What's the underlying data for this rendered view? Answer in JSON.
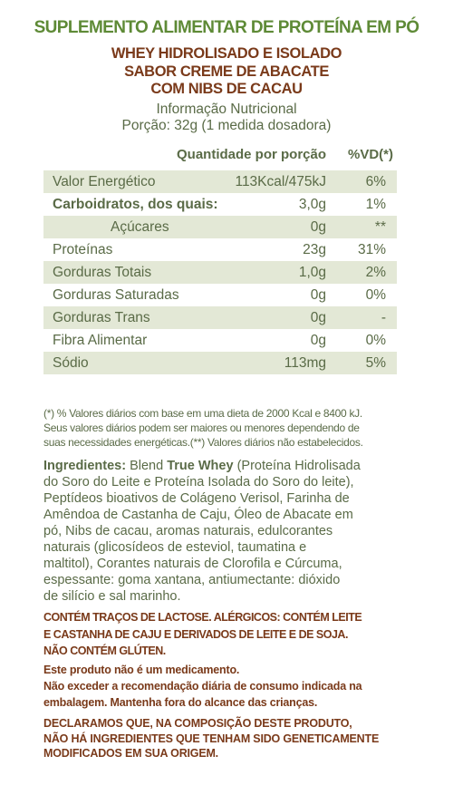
{
  "header": {
    "title": "SUPLEMENTO ALIMENTAR DE PROTEÍNA EM PÓ",
    "subtitle_lines": [
      "WHEY HIDROLISADO E ISOLADO",
      "SABOR CREME DE ABACATE",
      "COM NIBS DE CACAU"
    ],
    "info_title": "Informação Nutricional",
    "portion": "Porção: 32g (1 medida dosadora)"
  },
  "table": {
    "col_qty": "Quantidade por porção",
    "col_vd": "%VD(*)",
    "rows": [
      {
        "name": "Valor Energético",
        "qty": "113Kcal/475kJ",
        "vd": "6%"
      },
      {
        "name": "Carboidratos, dos quais:",
        "qty": "3,0g",
        "vd": "1%"
      },
      {
        "name": "Açúcares",
        "qty": "0g",
        "vd": "**"
      },
      {
        "name": "Proteínas",
        "qty": "23g",
        "vd": "31%"
      },
      {
        "name": "Gorduras Totais",
        "qty": "1,0g",
        "vd": "2%"
      },
      {
        "name": "Gorduras Saturadas",
        "qty": "0g",
        "vd": "0%"
      },
      {
        "name": "Gorduras Trans",
        "qty": "0g",
        "vd": "-"
      },
      {
        "name": "Fibra Alimentar",
        "qty": "0g",
        "vd": "0%"
      },
      {
        "name": "Sódio",
        "qty": "113mg",
        "vd": "5%"
      }
    ]
  },
  "footnote_lines": [
    "(*) % Valores diários com base em uma dieta de 2000 Kcal e 8400 kJ.",
    "Seus valores diários podem ser maiores ou menores dependendo de",
    "suas necessidades energéticas.(**) Valores diários não estabelecidos."
  ],
  "ingredients": {
    "label": "Ingredientes:",
    "line1_pre": "Blend",
    "brand": "True Whey",
    "line1_post": "(Proteína Hidrolisada",
    "lines": [
      "do Soro do Leite e Proteína Isolada do Soro do leite),",
      "Peptídeos bioativos de Colágeno Verisol, Farinha de",
      "Amêndoa de Castanha de Caju, Óleo de Abacate em",
      "pó, Nibs de cacau, aromas naturais, edulcorantes",
      "naturais (glicosídeos de esteviol, taumatina e",
      "maltitol), Corantes naturais de Clorofila e Cúrcuma,",
      "espessante: goma xantana, antiumectante: dióxido",
      "de silício e sal marinho."
    ]
  },
  "allergen_lines": [
    "CONTÉM TRAÇOS DE LACTOSE. ALÉRGICOS: CONTÉM LEITE",
    "E CASTANHA DE CAJU E DERIVADOS DE LEITE E DE SOJA.",
    "NÃO CONTÉM GLÚTEN."
  ],
  "notice_lines": [
    "Este produto não é um medicamento.",
    "Não exceder a recomendação diária de consumo indicada na",
    "embalagem. Mantenha fora do alcance das crianças."
  ],
  "gmo_lines": [
    "DECLARAMOS QUE, NA COMPOSIÇÃO DESTE PRODUTO,",
    "NÃO HÁ INGREDIENTES QUE TENHAM SIDO GENETICAMENTE",
    "MODIFICADOS EM SUA ORIGEM."
  ]
}
